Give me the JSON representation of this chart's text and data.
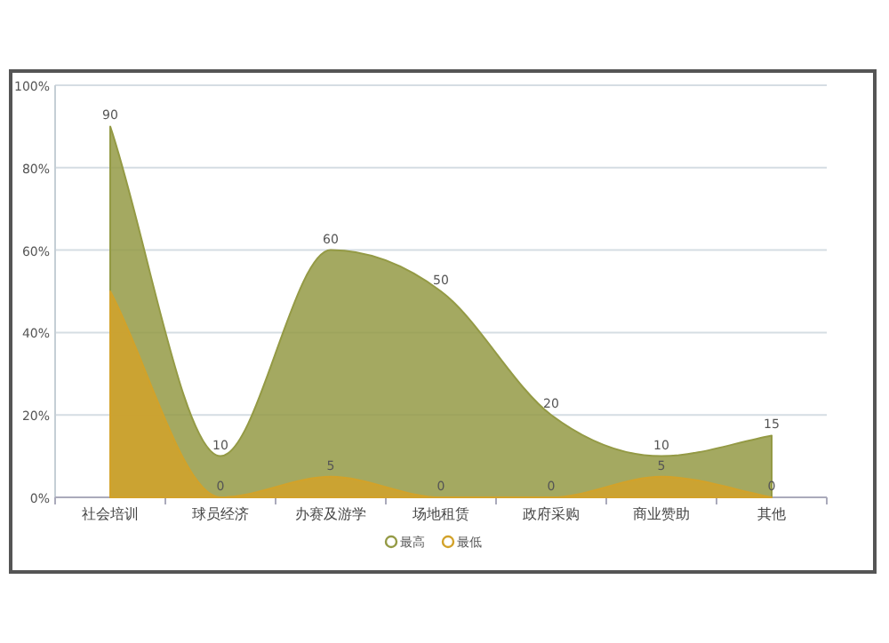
{
  "chart_data": {
    "type": "area",
    "categories": [
      "社会培训",
      "球员经济",
      "办赛及游学",
      "场地租赁",
      "政府采购",
      "商业赞助",
      "其他"
    ],
    "series": [
      {
        "name": "最高",
        "color": "#949a45",
        "values": [
          90,
          10,
          60,
          50,
          20,
          10,
          15
        ],
        "value_labels": [
          "90",
          "10",
          "60",
          "50",
          "20",
          "10",
          "15"
        ]
      },
      {
        "name": "最低",
        "color": "#d2a22a",
        "values": [
          50,
          0,
          5,
          0,
          0,
          5,
          0
        ],
        "value_labels": [
          null,
          "0",
          "5",
          "0",
          "0",
          "5",
          "0"
        ]
      }
    ],
    "ylim": [
      0,
      100
    ],
    "yticks": [
      {
        "value": 0,
        "label": "0%"
      },
      {
        "value": 20,
        "label": "20%"
      },
      {
        "value": 40,
        "label": "40%"
      },
      {
        "value": 60,
        "label": "60%"
      },
      {
        "value": 80,
        "label": "80%"
      },
      {
        "value": 100,
        "label": "100%"
      }
    ],
    "grid": "y",
    "legend": "bottom"
  }
}
